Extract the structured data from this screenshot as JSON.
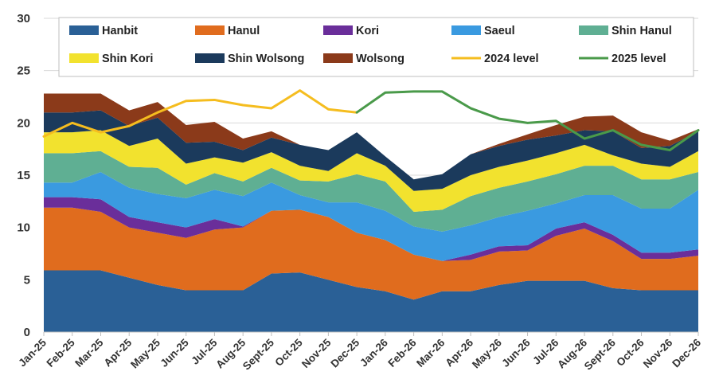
{
  "chart_data": {
    "type": "area",
    "stacked": true,
    "title": "",
    "xlabel": "",
    "ylabel": "",
    "ylim": [
      0,
      30
    ],
    "yticks": [
      0,
      5,
      10,
      15,
      20,
      25,
      30
    ],
    "grid": "horizontal",
    "categories": [
      "Jan-25",
      "Feb-25",
      "Mar-25",
      "Apr-25",
      "May-25",
      "Jun-25",
      "Jul-25",
      "Aug-25",
      "Sept-25",
      "Oct-25",
      "Nov-25",
      "Dec-25",
      "Jan-26",
      "Feb-26",
      "Mar-26",
      "Apr-26",
      "May-26",
      "Jun-26",
      "Jul-26",
      "Aug-26",
      "Sept-26",
      "Oct-26",
      "Nov-26",
      "Dec-26"
    ],
    "series": [
      {
        "name": "Hanbit",
        "color": "#2a6096",
        "values": [
          5.9,
          5.9,
          5.9,
          5.2,
          4.5,
          4.0,
          4.0,
          4.0,
          5.6,
          5.7,
          5.0,
          4.3,
          3.9,
          3.1,
          3.9,
          3.9,
          4.5,
          4.9,
          4.9,
          4.9,
          4.2,
          4.0,
          4.0,
          4.0
        ]
      },
      {
        "name": "Hanul",
        "color": "#e06c1e",
        "values": [
          6.0,
          6.0,
          5.6,
          4.8,
          5.0,
          5.0,
          5.8,
          6.0,
          6.0,
          6.0,
          6.0,
          5.2,
          4.9,
          4.3,
          2.9,
          3.0,
          3.2,
          2.9,
          4.3,
          5.0,
          4.5,
          3.0,
          3.0,
          3.3
        ]
      },
      {
        "name": "Kori",
        "color": "#6a2e9a",
        "values": [
          1.0,
          1.0,
          1.2,
          1.0,
          1.0,
          1.0,
          1.0,
          0.1,
          0.0,
          0.0,
          0.0,
          0.0,
          0.0,
          0.0,
          0.0,
          0.5,
          0.5,
          0.5,
          0.7,
          0.6,
          0.6,
          0.6,
          0.6,
          0.6
        ]
      },
      {
        "name": "Saeul",
        "color": "#3a9ae0",
        "values": [
          1.4,
          1.4,
          2.6,
          2.8,
          2.7,
          2.8,
          2.8,
          2.9,
          2.7,
          1.4,
          1.4,
          2.9,
          2.8,
          2.7,
          2.8,
          2.8,
          2.8,
          3.3,
          2.4,
          2.6,
          3.8,
          4.2,
          4.2,
          5.7
        ]
      },
      {
        "name": "Shin Hanul",
        "color": "#5faf93",
        "values": [
          2.8,
          2.8,
          2.0,
          2.0,
          2.5,
          1.3,
          1.6,
          1.4,
          1.4,
          1.4,
          2.0,
          2.7,
          2.8,
          1.4,
          2.1,
          2.8,
          2.8,
          2.8,
          2.8,
          2.8,
          2.8,
          2.8,
          2.8,
          1.7
        ]
      },
      {
        "name": "Shin Kori",
        "color": "#f2e22e",
        "values": [
          2.0,
          2.0,
          2.0,
          2.0,
          2.8,
          2.0,
          1.5,
          1.8,
          1.5,
          1.4,
          1.0,
          2.0,
          1.5,
          2.0,
          2.0,
          2.0,
          2.0,
          2.0,
          2.0,
          2.0,
          1.0,
          1.5,
          1.2,
          2.0
        ]
      },
      {
        "name": "Shin Wolsong",
        "color": "#1b3a5c",
        "values": [
          1.9,
          1.9,
          1.9,
          1.9,
          2.0,
          2.0,
          1.5,
          1.2,
          1.4,
          2.0,
          2.0,
          2.0,
          0.9,
          1.1,
          1.4,
          2.0,
          2.0,
          2.0,
          1.7,
          1.4,
          2.3,
          1.5,
          2.0,
          1.9
        ]
      },
      {
        "name": "Wolsong",
        "color": "#8b3a1a",
        "values": [
          1.8,
          1.8,
          1.6,
          1.5,
          1.5,
          1.7,
          1.9,
          1.1,
          0.6,
          0.0,
          0.0,
          0.0,
          0.0,
          0.0,
          0.0,
          0.0,
          0.2,
          0.5,
          1.0,
          1.3,
          1.5,
          1.5,
          0.5,
          0.2
        ]
      }
    ],
    "lines": [
      {
        "name": "2024 level",
        "color": "#f5bd1f",
        "values": [
          18.7,
          20.0,
          19.1,
          19.7,
          21.0,
          22.1,
          22.2,
          21.7,
          21.4,
          23.1,
          21.3,
          21.0,
          null,
          null,
          null,
          null,
          null,
          null,
          null,
          null,
          null,
          null,
          null,
          null
        ]
      },
      {
        "name": "2025 level",
        "color": "#4a9a4a",
        "values": [
          null,
          null,
          null,
          null,
          null,
          null,
          null,
          null,
          null,
          null,
          null,
          21.0,
          22.9,
          23.0,
          23.0,
          21.4,
          20.4,
          20.0,
          20.2,
          18.5,
          19.3,
          17.9,
          17.4,
          19.3
        ]
      }
    ],
    "legend": {
      "placement": "top",
      "entries": [
        "Hanbit",
        "Hanul",
        "Kori",
        "Saeul",
        "Shin Hanul",
        "Shin Kori",
        "Shin Wolsong",
        "Wolsong",
        "2024 level",
        "2025 level"
      ]
    }
  }
}
